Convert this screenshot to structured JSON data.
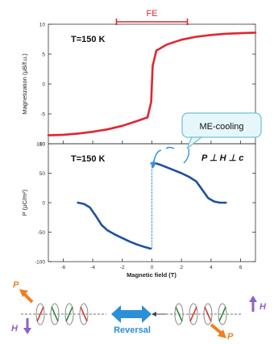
{
  "chart_data": [
    {
      "type": "line",
      "panel": "top",
      "label": "T=150 K",
      "fe_bracket": {
        "label": "FE",
        "x_range": [
          -2.4,
          2.4
        ]
      },
      "xlim": [
        -7,
        7
      ],
      "ylim": [
        -10,
        10
      ],
      "ylabel": "Magnetization (μB/f.u.)",
      "yticks": [
        -10,
        -5,
        0,
        5,
        10
      ],
      "series": [
        {
          "color": "#e0262f",
          "x": [
            -7,
            -6,
            -5,
            -4,
            -3,
            -2,
            -1,
            -0.3,
            -0.05,
            0.05,
            0.3,
            1,
            2,
            3,
            4,
            5,
            6,
            7
          ],
          "y": [
            -8.6,
            -8.5,
            -8.3,
            -8.0,
            -7.6,
            -7.0,
            -6.2,
            -5.6,
            -3.0,
            3.0,
            5.6,
            6.6,
            7.4,
            7.9,
            8.2,
            8.4,
            8.5,
            8.6
          ]
        }
      ]
    },
    {
      "type": "line",
      "panel": "bottom",
      "label": "T=150 K",
      "condition": "P ⊥ H ⊥ c",
      "callout": "ME-cooling",
      "xlim": [
        -7,
        7
      ],
      "ylim": [
        -100,
        100
      ],
      "xlabel": "Magnetic field (T)",
      "ylabel": "P (μC/m²)",
      "xticks": [
        -6,
        -4,
        -2,
        0,
        2,
        4,
        6
      ],
      "yticks": [
        -100,
        -50,
        0,
        50,
        100
      ],
      "series": [
        {
          "color": "#1f4fa0",
          "x": [
            -5.0,
            -4.6,
            -4.2,
            -3.8,
            -3.4,
            -3.0,
            -2.5,
            -2.0,
            -1.5,
            -1.0,
            -0.5,
            -0.1
          ],
          "y": [
            0,
            -2,
            -8,
            -22,
            -38,
            -47,
            -54,
            -60,
            -66,
            -71,
            -75,
            -78
          ]
        },
        {
          "color": "#1f4fa0",
          "x": [
            0.1,
            0.5,
            1.0,
            1.5,
            2.0,
            2.5,
            3.0,
            3.4,
            3.8,
            4.2,
            4.6,
            5.0
          ],
          "y": [
            68,
            65,
            60,
            55,
            50,
            44,
            36,
            22,
            8,
            2,
            0,
            0
          ]
        },
        {
          "color": "#3a8fe0",
          "dashed": true,
          "x": [
            0,
            0
          ],
          "y": [
            -78,
            68
          ]
        }
      ]
    }
  ],
  "schematic": {
    "left_labels": {
      "p": "P",
      "h": "H"
    },
    "right_labels": {
      "p": "P",
      "h": "H"
    },
    "center_label": "Reversal",
    "colors": {
      "p_arrow": "#f07f1e",
      "h_arrow": "#8c62c8",
      "reversal": "#2c8fd8"
    }
  }
}
